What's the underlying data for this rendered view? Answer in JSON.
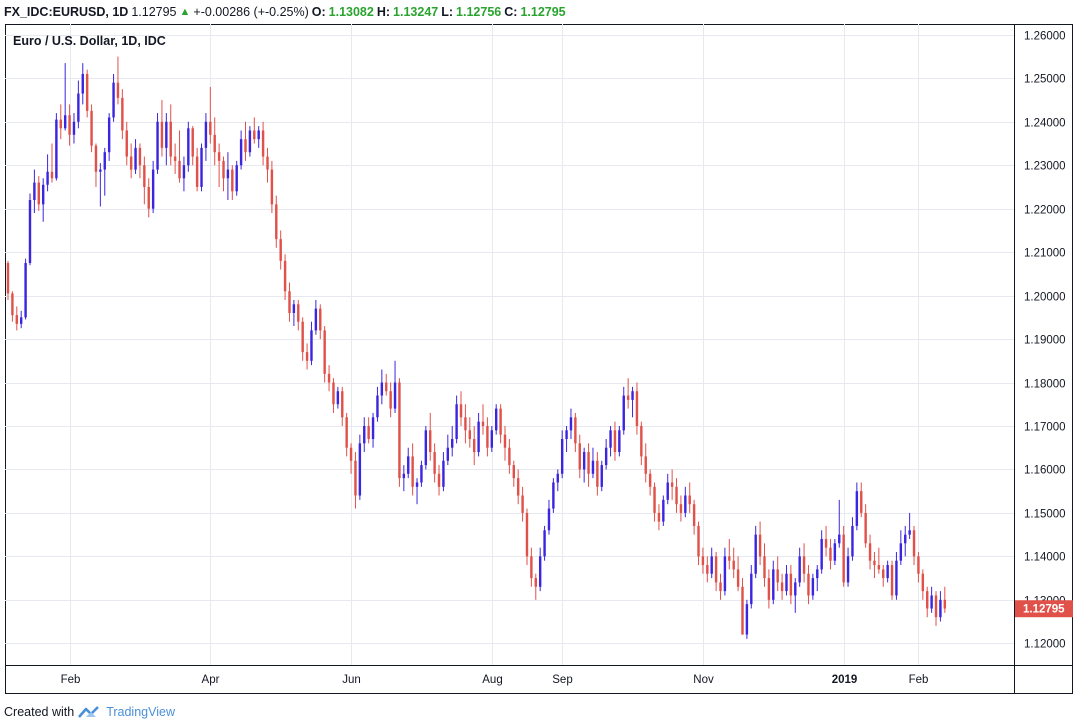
{
  "header": {
    "symbol": "FX_IDC:EURUSD, 1D",
    "last": "1.12795",
    "change": "+-0.00286 (+-0.25%)",
    "o_label": "O:",
    "o_value": "1.13082",
    "h_label": "H:",
    "h_value": "1.13247",
    "l_label": "L:",
    "l_value": "1.12756",
    "c_label": "C:",
    "c_value": "1.12795",
    "arrow_icon": "triangle-up-icon"
  },
  "footer": {
    "created_with": "Created with",
    "brand": "TradingView",
    "logo_icon": "tradingview-logo-icon"
  },
  "colors": {
    "up": "#3b26e0",
    "down": "#e0514a",
    "grid": "#e6e9ef",
    "axis_text": "#131722",
    "price_tag": "#e0514a"
  },
  "chart_data": {
    "type": "candlestick",
    "title": "Euro / U.S. Dollar, 1D, IDC",
    "ylim": [
      1.115,
      1.2625
    ],
    "y_ticks": [
      "1.26000",
      "1.25000",
      "1.24000",
      "1.23000",
      "1.22000",
      "1.21000",
      "1.20000",
      "1.19000",
      "1.18000",
      "1.17000",
      "1.16000",
      "1.15000",
      "1.14000",
      "1.13000",
      "1.12000"
    ],
    "x_labels": [
      "Feb",
      "Apr",
      "Jun",
      "Aug",
      "Sep",
      "Nov",
      "2019",
      "Feb"
    ],
    "x_label_days": [
      14,
      46,
      78,
      110,
      126,
      158,
      190,
      207
    ],
    "day_count": 222,
    "current_price": "1.12795",
    "grid": true,
    "ohlc": [
      [
        1.2075,
        1.208,
        1.199,
        1.2005
      ],
      [
        1.2005,
        1.201,
        1.194,
        1.1955
      ],
      [
        1.1955,
        1.1975,
        1.192,
        1.1935
      ],
      [
        1.1935,
        1.1965,
        1.1925,
        1.195
      ],
      [
        1.195,
        1.2085,
        1.1945,
        1.2075
      ],
      [
        1.2075,
        1.2235,
        1.207,
        1.222
      ],
      [
        1.222,
        1.229,
        1.219,
        1.226
      ],
      [
        1.226,
        1.2275,
        1.2195,
        1.221
      ],
      [
        1.221,
        1.227,
        1.217,
        1.2255
      ],
      [
        1.2255,
        1.2325,
        1.224,
        1.2285
      ],
      [
        1.2285,
        1.235,
        1.226,
        1.227
      ],
      [
        1.227,
        1.242,
        1.2265,
        1.2405
      ],
      [
        1.2405,
        1.244,
        1.236,
        1.2385
      ],
      [
        1.2385,
        1.2535,
        1.238,
        1.2415
      ],
      [
        1.2415,
        1.244,
        1.2345,
        1.237
      ],
      [
        1.237,
        1.242,
        1.235,
        1.24
      ],
      [
        1.24,
        1.2495,
        1.2385,
        1.2465
      ],
      [
        1.2465,
        1.2535,
        1.244,
        1.251
      ],
      [
        1.251,
        1.252,
        1.241,
        1.2425
      ],
      [
        1.2425,
        1.244,
        1.233,
        1.2345
      ],
      [
        1.2345,
        1.235,
        1.225,
        1.2285
      ],
      [
        1.2285,
        1.2305,
        1.2205,
        1.229
      ],
      [
        1.229,
        1.234,
        1.223,
        1.233
      ],
      [
        1.233,
        1.242,
        1.231,
        1.241
      ],
      [
        1.241,
        1.251,
        1.24,
        1.249
      ],
      [
        1.249,
        1.255,
        1.244,
        1.2455
      ],
      [
        1.2455,
        1.2475,
        1.236,
        1.238
      ],
      [
        1.238,
        1.24,
        1.23,
        1.232
      ],
      [
        1.232,
        1.235,
        1.227,
        1.229
      ],
      [
        1.229,
        1.236,
        1.228,
        1.234
      ],
      [
        1.234,
        1.235,
        1.227,
        1.23
      ],
      [
        1.23,
        1.232,
        1.221,
        1.225
      ],
      [
        1.225,
        1.227,
        1.218,
        1.22
      ],
      [
        1.22,
        1.231,
        1.219,
        1.229
      ],
      [
        1.229,
        1.242,
        1.228,
        1.24
      ],
      [
        1.24,
        1.245,
        1.232,
        1.234
      ],
      [
        1.234,
        1.242,
        1.23,
        1.24
      ],
      [
        1.24,
        1.244,
        1.23,
        1.232
      ],
      [
        1.232,
        1.235,
        1.228,
        1.231
      ],
      [
        1.231,
        1.238,
        1.226,
        1.227
      ],
      [
        1.227,
        1.232,
        1.224,
        1.23
      ],
      [
        1.23,
        1.24,
        1.2285,
        1.2385
      ],
      [
        1.2385,
        1.239,
        1.23,
        1.232
      ],
      [
        1.232,
        1.234,
        1.224,
        1.225
      ],
      [
        1.225,
        1.235,
        1.224,
        1.234
      ],
      [
        1.234,
        1.242,
        1.231,
        1.24
      ],
      [
        1.24,
        1.248,
        1.235,
        1.237
      ],
      [
        1.237,
        1.241,
        1.23,
        1.233
      ],
      [
        1.233,
        1.235,
        1.225,
        1.231
      ],
      [
        1.231,
        1.232,
        1.224,
        1.227
      ],
      [
        1.227,
        1.233,
        1.222,
        1.229
      ],
      [
        1.229,
        1.23,
        1.222,
        1.224
      ],
      [
        1.224,
        1.231,
        1.223,
        1.23
      ],
      [
        1.23,
        1.238,
        1.229,
        1.236
      ],
      [
        1.236,
        1.24,
        1.231,
        1.233
      ],
      [
        1.233,
        1.239,
        1.232,
        1.238
      ],
      [
        1.238,
        1.241,
        1.235,
        1.236
      ],
      [
        1.236,
        1.239,
        1.234,
        1.238
      ],
      [
        1.238,
        1.24,
        1.23,
        1.232
      ],
      [
        1.232,
        1.234,
        1.226,
        1.229
      ],
      [
        1.229,
        1.231,
        1.219,
        1.221
      ],
      [
        1.221,
        1.223,
        1.211,
        1.213
      ],
      [
        1.213,
        1.215,
        1.206,
        1.208
      ],
      [
        1.208,
        1.2095,
        1.199,
        1.201
      ],
      [
        1.201,
        1.203,
        1.194,
        1.196
      ],
      [
        1.196,
        1.199,
        1.193,
        1.198
      ],
      [
        1.198,
        1.199,
        1.192,
        1.194
      ],
      [
        1.194,
        1.195,
        1.185,
        1.187
      ],
      [
        1.187,
        1.189,
        1.183,
        1.185
      ],
      [
        1.185,
        1.194,
        1.184,
        1.192
      ],
      [
        1.192,
        1.199,
        1.191,
        1.197
      ],
      [
        1.197,
        1.198,
        1.19,
        1.192
      ],
      [
        1.192,
        1.193,
        1.18,
        1.182
      ],
      [
        1.182,
        1.184,
        1.178,
        1.18
      ],
      [
        1.18,
        1.181,
        1.173,
        1.175
      ],
      [
        1.175,
        1.179,
        1.174,
        1.178
      ],
      [
        1.178,
        1.179,
        1.17,
        1.172
      ],
      [
        1.172,
        1.173,
        1.163,
        1.165
      ],
      [
        1.165,
        1.166,
        1.159,
        1.162
      ],
      [
        1.162,
        1.164,
        1.151,
        1.154
      ],
      [
        1.154,
        1.168,
        1.153,
        1.166
      ],
      [
        1.166,
        1.172,
        1.164,
        1.17
      ],
      [
        1.17,
        1.172,
        1.166,
        1.167
      ],
      [
        1.167,
        1.173,
        1.165,
        1.172
      ],
      [
        1.172,
        1.179,
        1.171,
        1.177
      ],
      [
        1.177,
        1.183,
        1.175,
        1.18
      ],
      [
        1.18,
        1.182,
        1.177,
        1.178
      ],
      [
        1.178,
        1.18,
        1.172,
        1.174
      ],
      [
        1.174,
        1.185,
        1.173,
        1.18
      ],
      [
        1.18,
        1.181,
        1.156,
        1.158
      ],
      [
        1.158,
        1.161,
        1.155,
        1.159
      ],
      [
        1.159,
        1.165,
        1.158,
        1.163
      ],
      [
        1.163,
        1.166,
        1.154,
        1.156
      ],
      [
        1.156,
        1.158,
        1.152,
        1.157
      ],
      [
        1.157,
        1.162,
        1.156,
        1.161
      ],
      [
        1.161,
        1.17,
        1.16,
        1.169
      ],
      [
        1.169,
        1.173,
        1.162,
        1.164
      ],
      [
        1.164,
        1.166,
        1.157,
        1.159
      ],
      [
        1.159,
        1.161,
        1.154,
        1.156
      ],
      [
        1.156,
        1.164,
        1.155,
        1.162
      ],
      [
        1.162,
        1.168,
        1.161,
        1.165
      ],
      [
        1.165,
        1.17,
        1.163,
        1.167
      ],
      [
        1.167,
        1.177,
        1.166,
        1.175
      ],
      [
        1.175,
        1.178,
        1.17,
        1.172
      ],
      [
        1.172,
        1.175,
        1.166,
        1.169
      ],
      [
        1.169,
        1.172,
        1.165,
        1.167
      ],
      [
        1.167,
        1.17,
        1.161,
        1.164
      ],
      [
        1.164,
        1.173,
        1.163,
        1.171
      ],
      [
        1.171,
        1.175,
        1.168,
        1.17
      ],
      [
        1.17,
        1.172,
        1.163,
        1.165
      ],
      [
        1.165,
        1.17,
        1.164,
        1.169
      ],
      [
        1.169,
        1.175,
        1.168,
        1.174
      ],
      [
        1.174,
        1.175,
        1.166,
        1.168
      ],
      [
        1.168,
        1.17,
        1.162,
        1.165
      ],
      [
        1.165,
        1.167,
        1.159,
        1.161
      ],
      [
        1.161,
        1.162,
        1.156,
        1.158
      ],
      [
        1.158,
        1.16,
        1.152,
        1.154
      ],
      [
        1.154,
        1.156,
        1.148,
        1.15
      ],
      [
        1.15,
        1.151,
        1.138,
        1.14
      ],
      [
        1.14,
        1.142,
        1.133,
        1.135
      ],
      [
        1.135,
        1.136,
        1.13,
        1.133
      ],
      [
        1.133,
        1.142,
        1.132,
        1.14
      ],
      [
        1.14,
        1.147,
        1.139,
        1.146
      ],
      [
        1.146,
        1.153,
        1.145,
        1.151
      ],
      [
        1.151,
        1.158,
        1.15,
        1.157
      ],
      [
        1.157,
        1.16,
        1.155,
        1.159
      ],
      [
        1.159,
        1.169,
        1.158,
        1.167
      ],
      [
        1.167,
        1.17,
        1.164,
        1.169
      ],
      [
        1.169,
        1.174,
        1.167,
        1.172
      ],
      [
        1.172,
        1.173,
        1.164,
        1.166
      ],
      [
        1.166,
        1.168,
        1.158,
        1.16
      ],
      [
        1.16,
        1.165,
        1.157,
        1.164
      ],
      [
        1.164,
        1.166,
        1.156,
        1.159
      ],
      [
        1.159,
        1.165,
        1.158,
        1.162
      ],
      [
        1.162,
        1.164,
        1.154,
        1.156
      ],
      [
        1.156,
        1.162,
        1.155,
        1.161
      ],
      [
        1.161,
        1.167,
        1.16,
        1.165
      ],
      [
        1.165,
        1.17,
        1.163,
        1.169
      ],
      [
        1.169,
        1.171,
        1.162,
        1.164
      ],
      [
        1.164,
        1.17,
        1.163,
        1.169
      ],
      [
        1.169,
        1.179,
        1.168,
        1.177
      ],
      [
        1.177,
        1.181,
        1.174,
        1.176
      ],
      [
        1.176,
        1.179,
        1.172,
        1.178
      ],
      [
        1.178,
        1.18,
        1.168,
        1.17
      ],
      [
        1.17,
        1.171,
        1.161,
        1.163
      ],
      [
        1.163,
        1.166,
        1.157,
        1.159
      ],
      [
        1.159,
        1.16,
        1.154,
        1.156
      ],
      [
        1.156,
        1.157,
        1.148,
        1.15
      ],
      [
        1.15,
        1.152,
        1.146,
        1.148
      ],
      [
        1.148,
        1.154,
        1.147,
        1.153
      ],
      [
        1.153,
        1.159,
        1.152,
        1.157
      ],
      [
        1.157,
        1.16,
        1.153,
        1.156
      ],
      [
        1.156,
        1.158,
        1.15,
        1.152
      ],
      [
        1.152,
        1.154,
        1.148,
        1.15
      ],
      [
        1.15,
        1.156,
        1.149,
        1.154
      ],
      [
        1.154,
        1.157,
        1.15,
        1.152
      ],
      [
        1.152,
        1.153,
        1.145,
        1.147
      ],
      [
        1.147,
        1.148,
        1.138,
        1.14
      ],
      [
        1.14,
        1.142,
        1.136,
        1.138
      ],
      [
        1.138,
        1.14,
        1.134,
        1.136
      ],
      [
        1.136,
        1.142,
        1.135,
        1.14
      ],
      [
        1.14,
        1.141,
        1.132,
        1.134
      ],
      [
        1.134,
        1.136,
        1.13,
        1.132
      ],
      [
        1.132,
        1.142,
        1.131,
        1.14
      ],
      [
        1.14,
        1.144,
        1.137,
        1.139
      ],
      [
        1.139,
        1.142,
        1.135,
        1.137
      ],
      [
        1.137,
        1.14,
        1.132,
        1.133
      ],
      [
        1.133,
        1.135,
        1.122,
        1.122
      ],
      [
        1.122,
        1.13,
        1.121,
        1.129
      ],
      [
        1.129,
        1.138,
        1.128,
        1.136
      ],
      [
        1.136,
        1.147,
        1.135,
        1.145
      ],
      [
        1.145,
        1.148,
        1.138,
        1.14
      ],
      [
        1.14,
        1.143,
        1.133,
        1.135
      ],
      [
        1.135,
        1.137,
        1.128,
        1.13
      ],
      [
        1.13,
        1.139,
        1.129,
        1.137
      ],
      [
        1.137,
        1.14,
        1.132,
        1.134
      ],
      [
        1.134,
        1.136,
        1.13,
        1.132
      ],
      [
        1.132,
        1.138,
        1.131,
        1.136
      ],
      [
        1.136,
        1.138,
        1.129,
        1.131
      ],
      [
        1.131,
        1.135,
        1.127,
        1.134
      ],
      [
        1.134,
        1.142,
        1.133,
        1.14
      ],
      [
        1.14,
        1.143,
        1.134,
        1.136
      ],
      [
        1.136,
        1.138,
        1.129,
        1.131
      ],
      [
        1.131,
        1.136,
        1.13,
        1.135
      ],
      [
        1.135,
        1.138,
        1.132,
        1.137
      ],
      [
        1.137,
        1.146,
        1.136,
        1.144
      ],
      [
        1.144,
        1.147,
        1.14,
        1.142
      ],
      [
        1.142,
        1.144,
        1.137,
        1.139
      ],
      [
        1.139,
        1.144,
        1.138,
        1.143
      ],
      [
        1.143,
        1.153,
        1.142,
        1.145
      ],
      [
        1.145,
        1.147,
        1.133,
        1.134
      ],
      [
        1.134,
        1.142,
        1.133,
        1.14
      ],
      [
        1.14,
        1.149,
        1.139,
        1.147
      ],
      [
        1.147,
        1.157,
        1.146,
        1.155
      ],
      [
        1.155,
        1.157,
        1.149,
        1.15
      ],
      [
        1.15,
        1.152,
        1.142,
        1.143
      ],
      [
        1.143,
        1.145,
        1.137,
        1.139
      ],
      [
        1.139,
        1.141,
        1.135,
        1.138
      ],
      [
        1.138,
        1.142,
        1.136,
        1.137
      ],
      [
        1.137,
        1.138,
        1.133,
        1.135
      ],
      [
        1.135,
        1.139,
        1.134,
        1.138
      ],
      [
        1.138,
        1.139,
        1.13,
        1.131
      ],
      [
        1.131,
        1.141,
        1.13,
        1.139
      ],
      [
        1.139,
        1.146,
        1.138,
        1.143
      ],
      [
        1.143,
        1.147,
        1.14,
        1.145
      ],
      [
        1.145,
        1.15,
        1.144,
        1.146
      ],
      [
        1.146,
        1.147,
        1.138,
        1.14
      ],
      [
        1.14,
        1.141,
        1.134,
        1.136
      ],
      [
        1.136,
        1.137,
        1.13,
        1.132
      ],
      [
        1.132,
        1.133,
        1.126,
        1.128
      ],
      [
        1.128,
        1.133,
        1.127,
        1.131
      ],
      [
        1.131,
        1.132,
        1.124,
        1.126
      ],
      [
        1.126,
        1.132,
        1.125,
        1.13
      ],
      [
        1.13,
        1.133,
        1.127,
        1.128
      ]
    ]
  }
}
